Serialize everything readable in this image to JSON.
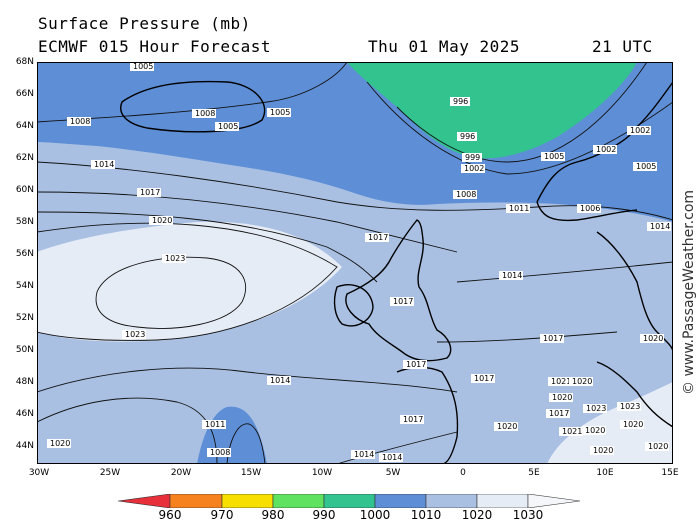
{
  "header": {
    "title": "Surface Pressure (mb)",
    "model_line": "ECMWF 015 Hour Forecast",
    "date": "Thu 01 May 2025",
    "time": "21 UTC"
  },
  "watermark": "© www.PassageWeather.com",
  "map": {
    "lat_labels": [
      "68N",
      "66N",
      "64N",
      "62N",
      "60N",
      "58N",
      "56N",
      "54N",
      "52N",
      "50N",
      "48N",
      "46N",
      "44N"
    ],
    "lon_labels": [
      "30W",
      "25W",
      "20W",
      "15W",
      "10W",
      "5W",
      "0",
      "5E",
      "10E",
      "15E"
    ],
    "isobar_labels": [
      "1005",
      "1008",
      "1005",
      "1005",
      "1008",
      "996",
      "996",
      "999",
      "1002",
      "1005",
      "1002",
      "1002",
      "1005",
      "1014",
      "1017",
      "1008",
      "1011",
      "1006",
      "1020",
      "1017",
      "1023",
      "1014",
      "1014",
      "1017",
      "1023",
      "1017",
      "1020",
      "1014",
      "1017",
      "1017",
      "1017",
      "1021",
      "1020",
      "1020",
      "1023",
      "1023",
      "1020",
      "1017",
      "1020",
      "1011",
      "1008",
      "1020",
      "1014",
      "1014",
      "1021",
      "1020",
      "1020",
      "1020"
    ]
  },
  "colorbar": {
    "labels": [
      "960",
      "970",
      "980",
      "990",
      "1000",
      "1010",
      "1020",
      "1030"
    ],
    "colors": [
      "#e8303a",
      "#f5821f",
      "#f7e000",
      "#5fe25f",
      "#33c38f",
      "#5e8ed6",
      "#a9c0e3",
      "#e6ecf6"
    ]
  }
}
